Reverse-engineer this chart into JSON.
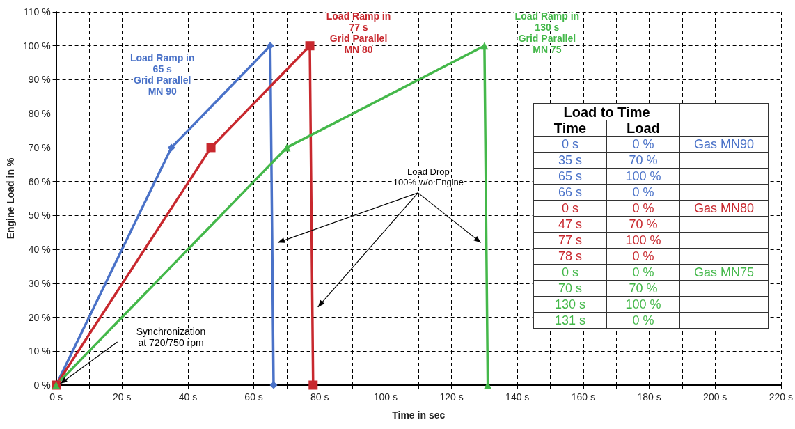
{
  "chart_data": {
    "type": "line",
    "xlabel": "Time in sec",
    "ylabel": "Engine Load in %",
    "series": [
      {
        "name": "Gas MN90",
        "color": "#4a72c8",
        "x": [
          0,
          35,
          65,
          66
        ],
        "values": [
          0,
          70,
          100,
          0
        ],
        "marker": "diamond"
      },
      {
        "name": "Gas MN80",
        "color": "#c8282e",
        "x": [
          0,
          47,
          77,
          78
        ],
        "values": [
          0,
          70,
          100,
          0
        ],
        "marker": "square"
      },
      {
        "name": "Gas MN75",
        "color": "#44b84a",
        "x": [
          0,
          70,
          130,
          131
        ],
        "values": [
          0,
          70,
          100,
          0
        ],
        "marker": "triangle"
      }
    ],
    "annotations": [
      "Load Ramp in\n65 s\nGrid Parallel\nMN 90",
      "Load Ramp in\n77 s\nGrid Parallel\nMN 80",
      "Load Ramp in\n130 s\nGrid Parallel\nMN 75",
      "Load Drop\n100% w/o Engine",
      "Synchronization\nat 720/750 rpm",
      "Load to Time",
      "Time",
      "Load",
      "0 s",
      "0 %",
      "35 s",
      "70 %",
      "65 s",
      "100 %",
      "66 s",
      "0 %",
      "0 s",
      "0 %",
      "47 s",
      "70 %",
      "77 s",
      "100 %",
      "78 s",
      "0 %",
      "0 s",
      "0 %",
      "70 s",
      "70 %",
      "130 s",
      "100 %",
      "131 s",
      "0 %"
    ],
    "xlim": [
      0,
      220
    ],
    "xticks": [
      {
        "value": 0,
        "label": "0 s"
      },
      {
        "value": 10,
        "label": null
      },
      {
        "value": 20,
        "label": "20 s"
      },
      {
        "value": 30,
        "label": null
      },
      {
        "value": 40,
        "label": "40 s"
      },
      {
        "value": 50,
        "label": null
      },
      {
        "value": 60,
        "label": "60 s"
      },
      {
        "value": 70,
        "label": null
      },
      {
        "value": 80,
        "label": "80 s"
      },
      {
        "value": 90,
        "label": null
      },
      {
        "value": 100,
        "label": "100 s"
      },
      {
        "value": 110,
        "label": null
      },
      {
        "value": 120,
        "label": "120 s"
      },
      {
        "value": 130,
        "label": null
      },
      {
        "value": 140,
        "label": "140 s"
      },
      {
        "value": 150,
        "label": null
      },
      {
        "value": 160,
        "label": "160 s"
      },
      {
        "value": 170,
        "label": null
      },
      {
        "value": 180,
        "label": "180 s"
      },
      {
        "value": 190,
        "label": null
      },
      {
        "value": 200,
        "label": "200 s"
      },
      {
        "value": 210,
        "label": null
      },
      {
        "value": 220,
        "label": "220 s"
      }
    ],
    "ylim": [
      0,
      110
    ],
    "yticks": [
      {
        "value": 0,
        "label": "0 %"
      },
      {
        "value": 10,
        "label": "10 %"
      },
      {
        "value": 20,
        "label": "20 %"
      },
      {
        "value": 30,
        "label": "30 %"
      },
      {
        "value": 40,
        "label": "40 %"
      },
      {
        "value": 50,
        "label": "50 %"
      },
      {
        "value": 60,
        "label": "60 %"
      },
      {
        "value": 70,
        "label": "70 %"
      },
      {
        "value": 80,
        "label": "80 %"
      },
      {
        "value": 90,
        "label": "90 %"
      },
      {
        "value": 100,
        "label": "100 %"
      },
      {
        "value": 110,
        "label": "110 %"
      }
    ],
    "grid": true,
    "legend": false,
    "line_style": "solid"
  }
}
